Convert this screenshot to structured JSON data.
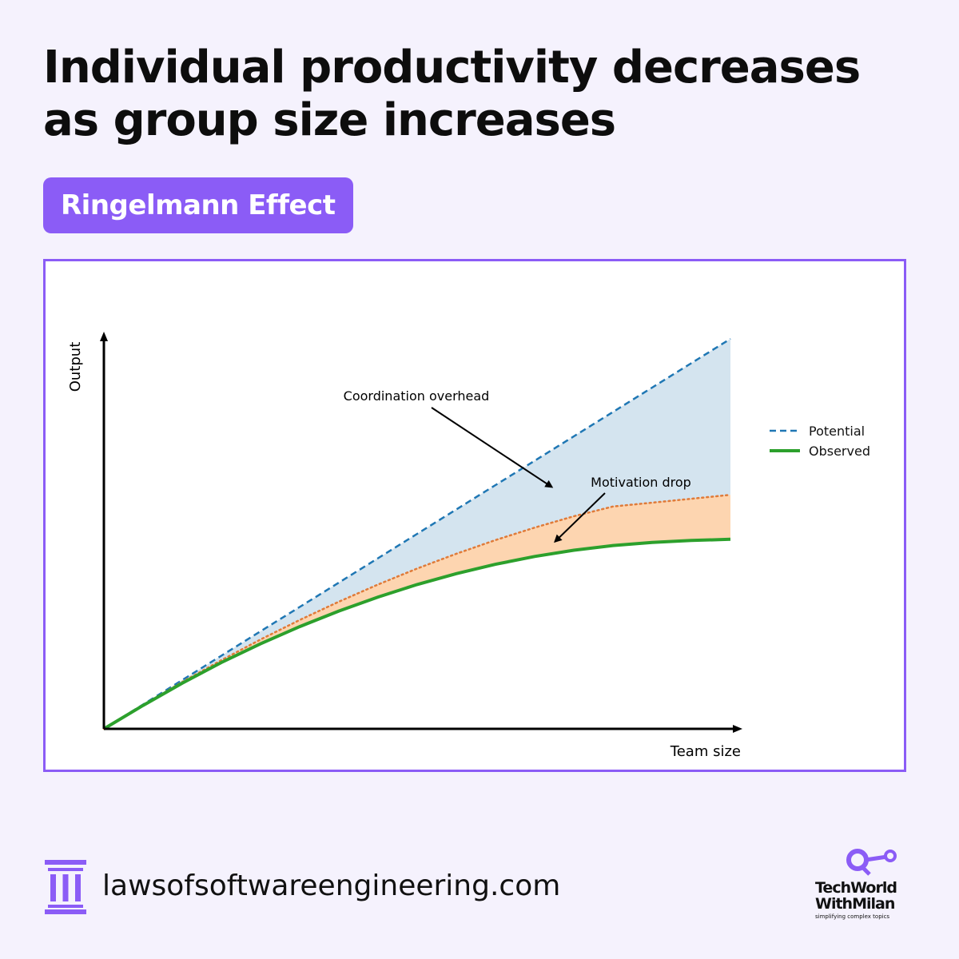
{
  "headline": {
    "line1": "Individual productivity decreases",
    "line2": "as group size increases"
  },
  "tag": "Ringelmann Effect",
  "chart_data": {
    "type": "area",
    "xlabel": "Team size",
    "ylabel": "Output",
    "x_range": [
      0,
      1
    ],
    "y_range": [
      0,
      1
    ],
    "axis_ticks": false,
    "grid": false,
    "legend": "right",
    "series": [
      {
        "name": "Potential",
        "style": "dashed",
        "color": "#1f77b4"
      },
      {
        "name": "Observed",
        "style": "solid",
        "color": "#2ca02c"
      },
      {
        "style": "dotted",
        "color": "#e07b39"
      }
    ],
    "x": [
      0,
      0.0625,
      0.125,
      0.1875,
      0.25,
      0.3125,
      0.375,
      0.4375,
      0.5,
      0.5625,
      0.625,
      0.6875,
      0.75,
      0.8125,
      0.875,
      0.9375,
      1
    ],
    "potential": [
      0,
      0.0625,
      0.125,
      0.1875,
      0.25,
      0.3125,
      0.375,
      0.4375,
      0.5,
      0.5625,
      0.625,
      0.6875,
      0.75,
      0.8125,
      0.875,
      0.9375,
      1
    ],
    "after_coordination": [
      0,
      0.061,
      0.12,
      0.176,
      0.229,
      0.279,
      0.326,
      0.37,
      0.411,
      0.449,
      0.484,
      0.516,
      0.545,
      0.57,
      0.58,
      0.59,
      0.6
    ],
    "observed": [
      0,
      0.06,
      0.117,
      0.17,
      0.218,
      0.262,
      0.302,
      0.338,
      0.37,
      0.398,
      0.422,
      0.442,
      0.458,
      0.47,
      0.478,
      0.483,
      0.486
    ],
    "fills": [
      {
        "between": [
          "after_coordination",
          "potential"
        ],
        "color": "#d4e4ef"
      },
      {
        "between": [
          "observed",
          "after_coordination"
        ],
        "color": "#fdd5b0"
      }
    ],
    "annotations": [
      {
        "text": "Coordination overhead",
        "target_x": 0.715,
        "target_y": 0.62
      },
      {
        "text": "Motivation drop",
        "target_x": 0.72,
        "target_y": 0.48
      }
    ]
  },
  "footer": {
    "website": "lawsofsoftwareengineering.com"
  },
  "brand": {
    "line1": "TechWorld",
    "line2": "WithMilan",
    "tagline": "simplifying complex topics"
  },
  "colors": {
    "accent": "#8b5cf6",
    "background": "#f5f2fd",
    "headline": "#0d0d0d"
  }
}
